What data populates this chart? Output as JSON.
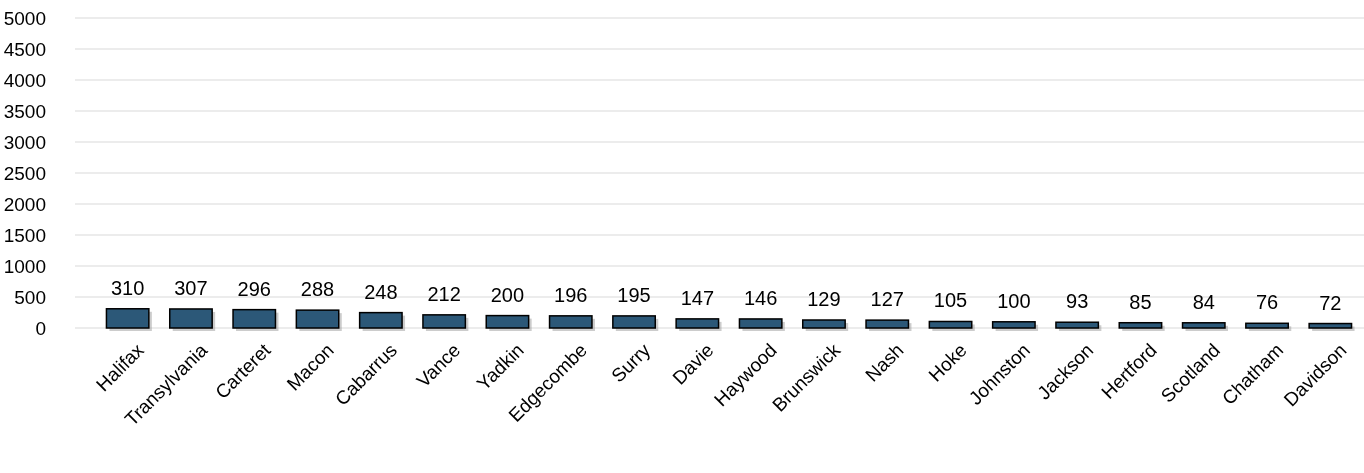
{
  "chart_data": {
    "type": "bar",
    "categories": [
      "Halifax",
      "Transylvania",
      "Carteret",
      "Macon",
      "Cabarrus",
      "Vance",
      "Yadkin",
      "Edgecombe",
      "Surry",
      "Davie",
      "Haywood",
      "Brunswick",
      "Nash",
      "Hoke",
      "Johnston",
      "Jackson",
      "Hertford",
      "Scotland",
      "Chatham",
      "Davidson"
    ],
    "values": [
      310,
      307,
      296,
      288,
      248,
      212,
      200,
      196,
      195,
      147,
      146,
      129,
      127,
      105,
      100,
      93,
      85,
      84,
      76,
      72
    ],
    "color": "#2c5878",
    "ylim": [
      0,
      5000
    ],
    "yticks": [
      0,
      500,
      1000,
      1500,
      2000,
      2500,
      3000,
      3500,
      4000,
      4500,
      5000
    ],
    "grid": "y",
    "data_labels": true
  }
}
